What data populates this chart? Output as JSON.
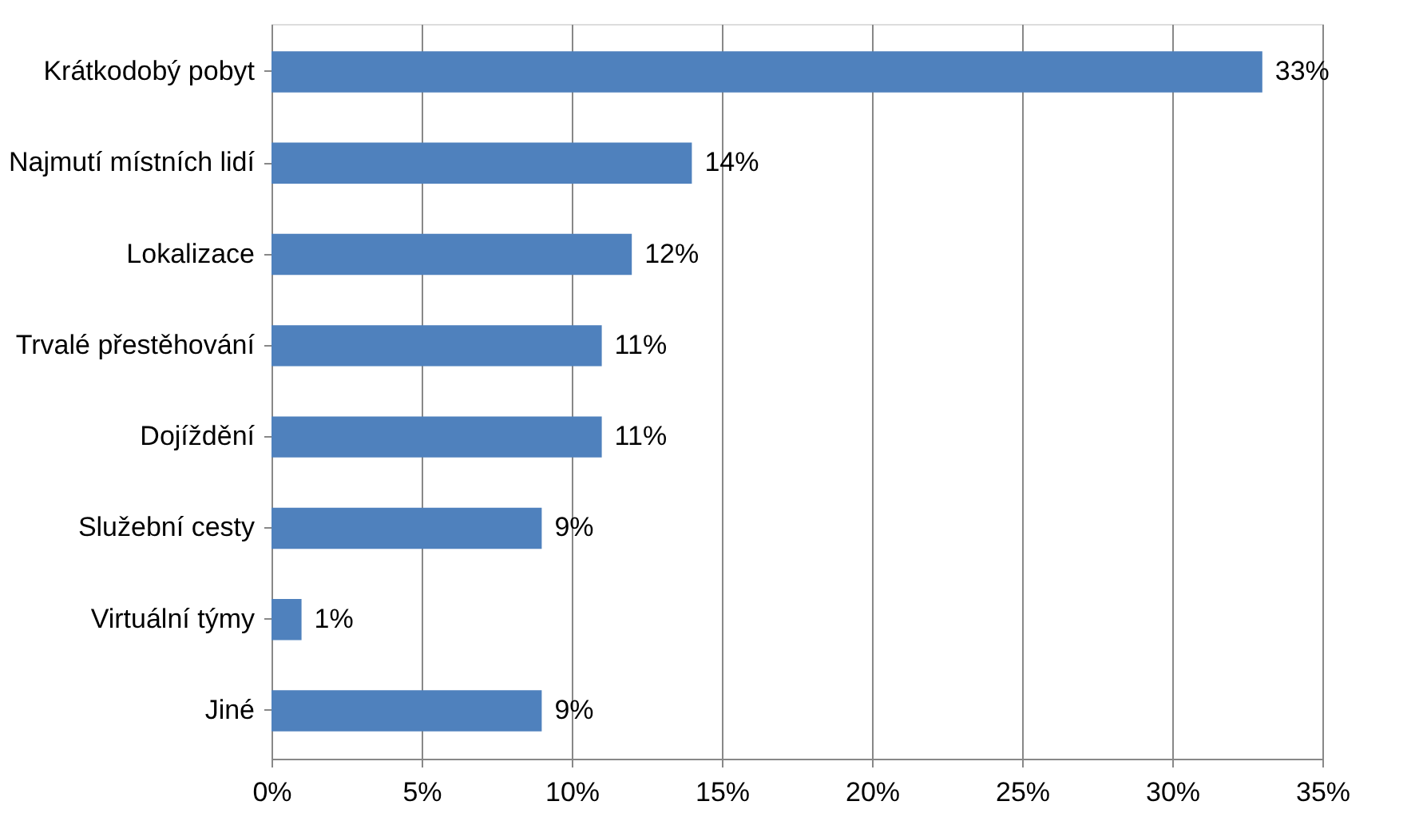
{
  "chart_data": {
    "type": "bar",
    "orientation": "horizontal",
    "categories": [
      "Krátkodobý pobyt",
      "Najmutí místních lidí",
      "Lokalizace",
      "Trvalé přestěhování",
      "Dojíždění",
      "Služební cesty",
      "Virtuální týmy",
      "Jiné"
    ],
    "values": [
      33,
      14,
      12,
      11,
      11,
      9,
      1,
      9
    ],
    "value_labels": [
      "33%",
      "14%",
      "12%",
      "11%",
      "11%",
      "9%",
      "1%",
      "9%"
    ],
    "color": "#4f81bd",
    "xlim": [
      0,
      35
    ],
    "xticks": [
      {
        "value": 0,
        "label": "0%"
      },
      {
        "value": 5,
        "label": "5%"
      },
      {
        "value": 10,
        "label": "10%"
      },
      {
        "value": 15,
        "label": "15%"
      },
      {
        "value": 20,
        "label": "20%"
      },
      {
        "value": 25,
        "label": "25%"
      },
      {
        "value": 30,
        "label": "30%"
      },
      {
        "value": 35,
        "label": "35%"
      }
    ],
    "grid": "x"
  }
}
